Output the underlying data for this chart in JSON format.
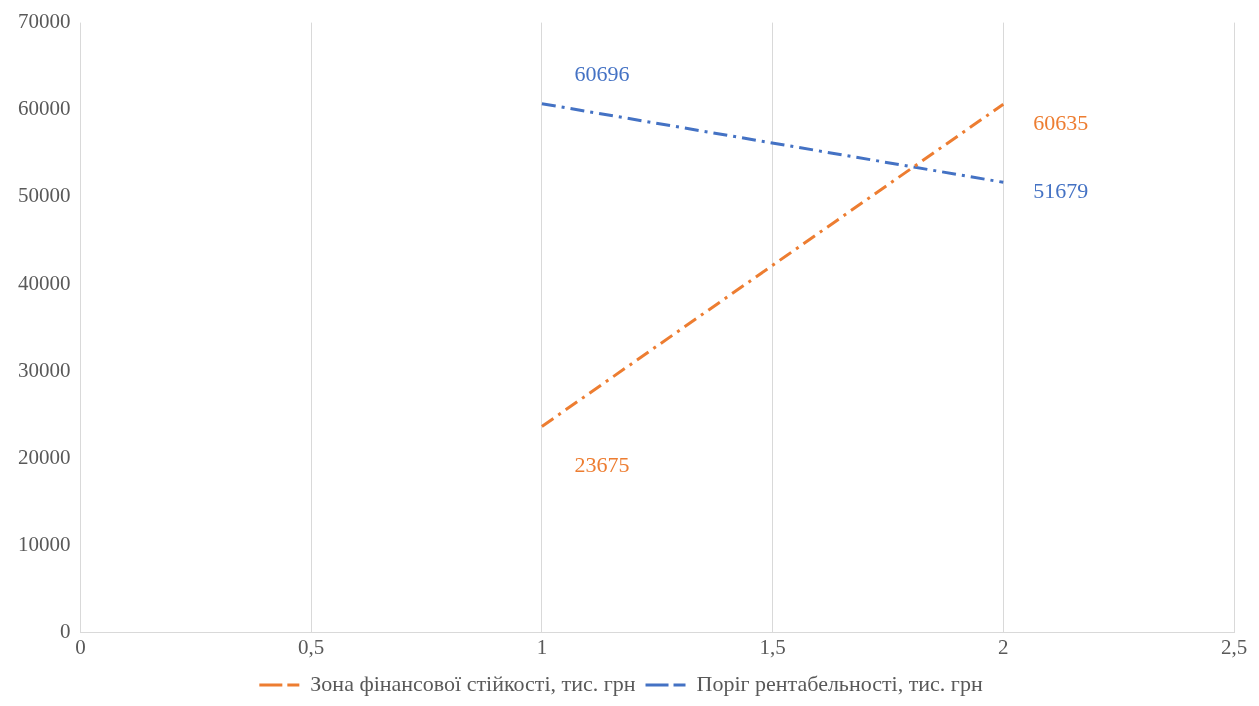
{
  "chart_data": {
    "type": "line",
    "x": [
      1,
      2
    ],
    "series": [
      {
        "name": "Зона фінансової стійкості, тис. грн",
        "color": "#ed7d31",
        "values": [
          23675,
          60635
        ],
        "line_style": "dashed"
      },
      {
        "name": "Поріг рентабельності, тис. грн",
        "color": "#4472c4",
        "values": [
          60696,
          51679
        ],
        "line_style": "dashed"
      }
    ],
    "xlim": [
      0,
      2.5
    ],
    "xticks": [
      0,
      {
        "value": 0.5,
        "label": "0,5"
      },
      1,
      {
        "value": 1.5,
        "label": "1,5"
      },
      2,
      {
        "value": 2.5,
        "label": "2,5"
      }
    ],
    "ylim": [
      0,
      70000
    ],
    "yticks": [
      0,
      10000,
      20000,
      30000,
      40000,
      50000,
      60000,
      70000
    ],
    "grid": "x",
    "legend": "bottom",
    "marker": "none",
    "data_labels": true
  }
}
